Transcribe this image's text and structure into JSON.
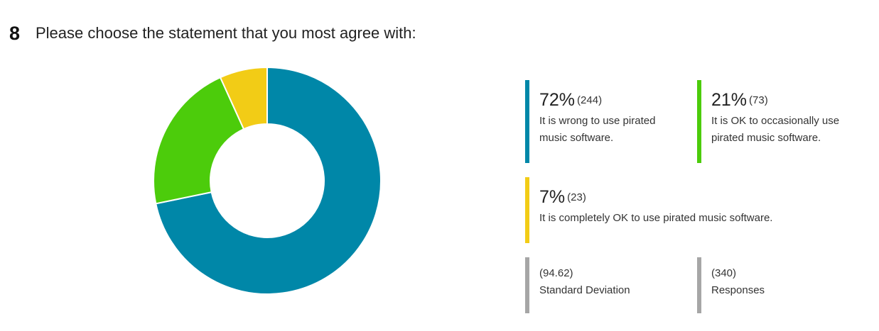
{
  "question": {
    "number": "8",
    "text": "Please choose the statement that you most agree with:"
  },
  "chart_data": {
    "type": "pie",
    "style": "donut",
    "categories": [
      "It is wrong to use pirated music software.",
      "It is OK to occasionally use pirated music software.",
      "It is completely OK to use pirated music software."
    ],
    "values": [
      244,
      73,
      23
    ],
    "percent_labels": [
      "72%",
      "21%",
      "7%"
    ],
    "count_labels": [
      "(244)",
      "(73)",
      "(23)"
    ],
    "colors": [
      "#0087a8",
      "#4ccc0b",
      "#f2cc16"
    ],
    "legend_placement": "right"
  },
  "stats": [
    {
      "value": "(94.62)",
      "label": "Standard Deviation"
    },
    {
      "value": "(340)",
      "label": "Responses"
    }
  ],
  "stat_color": "#a6a6a6"
}
